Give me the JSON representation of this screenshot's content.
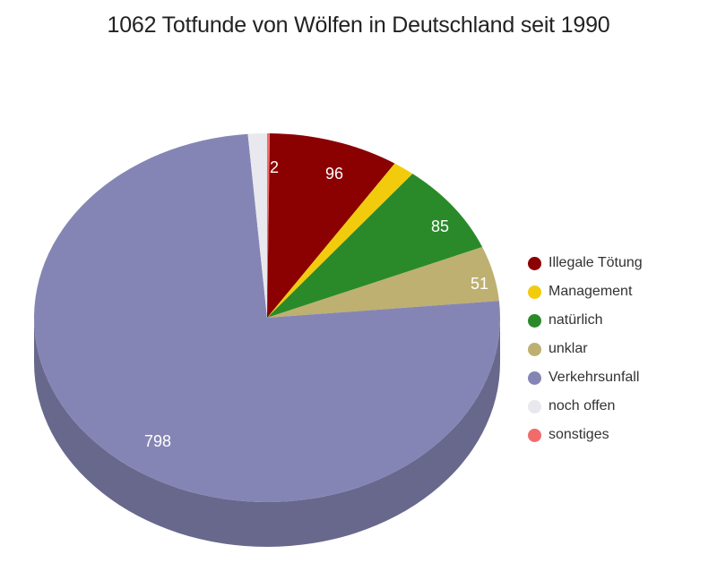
{
  "title": "1062 Totfunde von Wölfen in Deutschland seit 1990",
  "legend": {
    "items": [
      {
        "label": "Illegale Tötung",
        "color": "#8b0000"
      },
      {
        "label": "Management",
        "color": "#f2cc0c"
      },
      {
        "label": "natürlich",
        "color": "#2a8a2a"
      },
      {
        "label": "unklar",
        "color": "#bdb071"
      },
      {
        "label": "Verkehrsunfall",
        "color": "#8585b5"
      },
      {
        "label": "noch offen",
        "color": "#e8e8ee"
      },
      {
        "label": "sonstiges",
        "color": "#f26b6b"
      }
    ]
  },
  "chart_data": {
    "type": "pie",
    "style": "3d",
    "title": "1062 Totfunde von Wölfen in Deutschland seit 1990",
    "total": 1062,
    "legend_position": "right",
    "slices": [
      {
        "label": "sonstiges",
        "value": 2,
        "color": "#f26b6b",
        "shown_label": "2"
      },
      {
        "label": "Illegale Tötung",
        "value": 96,
        "color": "#8b0000",
        "shown_label": "96"
      },
      {
        "label": "Management",
        "value": 16,
        "color": "#f2cc0c",
        "shown_label": "",
        "estimated": true
      },
      {
        "label": "natürlich",
        "value": 85,
        "color": "#2a8a2a",
        "shown_label": "85"
      },
      {
        "label": "unklar",
        "value": 51,
        "color": "#bdb071",
        "shown_label": "51"
      },
      {
        "label": "Verkehrsunfall",
        "value": 798,
        "color": "#8585b5",
        "shown_label": "798"
      },
      {
        "label": "noch offen",
        "value": 14,
        "color": "#e8e8ee",
        "shown_label": "",
        "estimated": true
      }
    ],
    "visible_value_labels": [
      "2",
      "96",
      "85",
      "51",
      "798"
    ]
  }
}
